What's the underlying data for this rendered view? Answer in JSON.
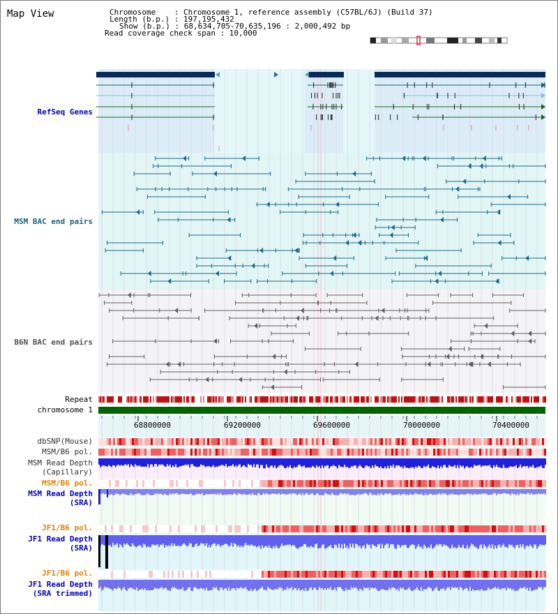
{
  "view_title": "Map View",
  "info": {
    "chromosome": "Chromosome    : Chromosome 1, reference assembly (C57BL/6J) (Build 37)",
    "length": "Length (b.p.) : 197,195,432",
    "show": "Show (b.p.) : 68,634,705-70,635,196 : 2,000,492 bp",
    "coverage": "Read coverage check span : 10,000"
  },
  "tracks": {
    "refseq": "RefSeq Genes",
    "msm_bac": "MSM BAC end pairs",
    "b6n_bac": "B6N BAC end pairs",
    "repeat": "Repeat",
    "chromosome": "chromosome 1",
    "dbsnp": "dbSNP(Mouse)",
    "msm_b6_pol_1": "MSM/B6 pol.",
    "msm_read_depth_cap_1": "MSM Read Depth",
    "msm_read_depth_cap_2": "(Capillary)",
    "msm_b6_pol_2": "MSM/B6 pol.",
    "msm_read_depth_sra_1": "MSM Read Depth",
    "msm_read_depth_sra_2": "(SRA)",
    "jf1_b6_pol_1": "JF1/B6 pol.",
    "jf1_read_depth_sra_1": "JF1 Read Depth",
    "jf1_read_depth_sra_2": "(SRA)",
    "jf1_b6_pol_2": "JF1/B6 pol.",
    "jf1_read_depth_trim_1": "JF1 Read Depth",
    "jf1_read_depth_trim_2": "(SRA trimmed)"
  },
  "axis": {
    "ticks": [
      "68800000",
      "69200000",
      "69600000",
      "70000000",
      "70400000"
    ]
  },
  "colors": {
    "refseq_label": "#0000c0",
    "msm_bac_label": "#1a6080",
    "b6n_bac_label": "#505050",
    "pol_label": "#e08000",
    "depth_label": "#0000c0",
    "gene_dark": "#0a2a5a",
    "chromosome_bar": "#006400",
    "repeat": "#c01010",
    "depth_blue": "#2020e0",
    "depth_light": "#8080f0"
  }
}
